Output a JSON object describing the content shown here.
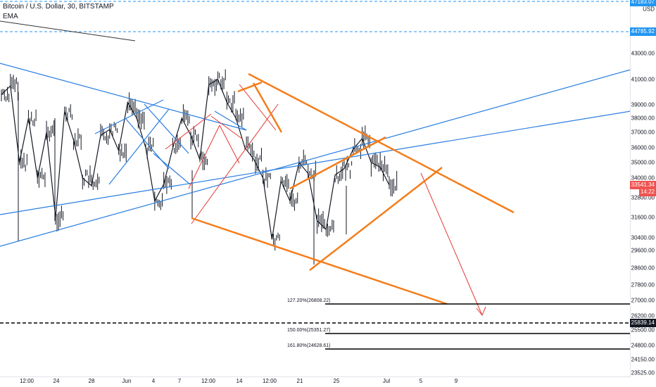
{
  "header": {
    "symbol_title": "Bitcoin / U.S. Dollar, 30, BITSTAMP",
    "indicator": "EMA"
  },
  "axis": {
    "currency": "USD",
    "y_ticks": [
      "43000.00",
      "41000.00",
      "39000.00",
      "38000.00",
      "37000.00",
      "36000.00",
      "35000.00",
      "34000.00",
      "32800.00",
      "31600.00",
      "30400.00",
      "29600.00",
      "28600.00",
      "27800.00",
      "27000.00",
      "26200.00",
      "25500.00",
      "24800.00",
      "24150.00",
      "23525.00"
    ],
    "x_ticks": [
      "12:00",
      "24",
      "28",
      "Jun",
      "4",
      "7",
      "12:00",
      "14",
      "12:00",
      "21",
      "25",
      "Jul",
      "5",
      "9"
    ]
  },
  "badges": {
    "top_value": "47183.07",
    "upper_dashed": "44785.92",
    "current_price": "33541.34",
    "countdown": "14:22",
    "lower_dashed": "25839.14"
  },
  "fib_levels": [
    {
      "label": "127.20%(26808.22)",
      "price": 26808.22
    },
    {
      "label": "150.00%(25351.27)",
      "price": 25351.27
    },
    {
      "label": "161.80%(24628.61)",
      "price": 24628.61
    }
  ],
  "colors": {
    "up": "#131722",
    "ema": "#131722",
    "blue_lines": "#2a7de1",
    "orange_lines": "#f57c19",
    "red_lines": "#e53935",
    "price_badge": "#ef5350",
    "dashed_blue": "#2196f3"
  },
  "chart_data": {
    "type": "line",
    "title": "Bitcoin / U.S. Dollar, 30, BITSTAMP",
    "series": [
      {
        "name": "EMA",
        "values": []
      }
    ],
    "price_path": [
      39800,
      40500,
      35000,
      38000,
      34000,
      37000,
      31600,
      38500,
      36500,
      34000,
      33500,
      36800,
      37200,
      35800,
      39200,
      38000,
      36000,
      32600,
      33600,
      36000,
      38000,
      36800,
      35200,
      40600,
      41000,
      39200,
      38000,
      36000,
      35200,
      34000,
      30300,
      33800,
      32600,
      35000,
      34300,
      31400,
      30900,
      34200,
      34600,
      35900,
      36600,
      35000,
      34700,
      33541
    ]
  }
}
